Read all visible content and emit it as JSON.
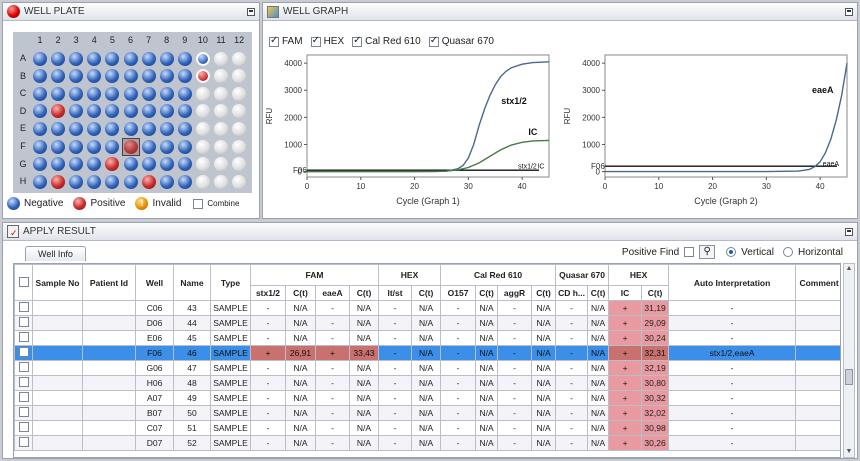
{
  "well_plate": {
    "title": "WELL PLATE",
    "columns": [
      "1",
      "2",
      "3",
      "4",
      "5",
      "6",
      "7",
      "8",
      "9",
      "10",
      "11",
      "12"
    ],
    "rows": [
      "A",
      "B",
      "C",
      "D",
      "E",
      "F",
      "G",
      "H"
    ],
    "wells": [
      [
        "N",
        "N",
        "N",
        "N",
        "N",
        "N",
        "N",
        "N",
        "N",
        "N-ring",
        "E",
        "E"
      ],
      [
        "N",
        "N",
        "N",
        "N",
        "N",
        "N",
        "N",
        "N",
        "N",
        "P-ring",
        "E",
        "E"
      ],
      [
        "N",
        "N",
        "N",
        "N",
        "N",
        "N",
        "N",
        "N",
        "N",
        "E",
        "E",
        "E"
      ],
      [
        "N",
        "P",
        "N",
        "N",
        "N",
        "N",
        "N",
        "N",
        "N",
        "E",
        "E",
        "E"
      ],
      [
        "N",
        "N",
        "N",
        "N",
        "N",
        "N",
        "N",
        "N",
        "N",
        "E",
        "E",
        "E"
      ],
      [
        "N",
        "N",
        "N",
        "N",
        "N",
        "P",
        "N",
        "N",
        "N",
        "E",
        "E",
        "E"
      ],
      [
        "N",
        "N",
        "N",
        "N",
        "P",
        "N",
        "N",
        "N",
        "N",
        "E",
        "E",
        "E"
      ],
      [
        "N",
        "P",
        "N",
        "N",
        "N",
        "N",
        "P",
        "N",
        "N",
        "E",
        "E",
        "E"
      ]
    ],
    "legend": {
      "negative": "Negative",
      "positive": "Positive",
      "invalid": "Invalid",
      "combine": "Combine"
    },
    "colors": {
      "negative": "#2f62b8",
      "positive": "#c52b2b",
      "invalid": "#e88a00",
      "empty": "#dcdcdc"
    }
  },
  "well_graph": {
    "title": "WELL GRAPH",
    "dyes": [
      {
        "label": "FAM",
        "checked": true
      },
      {
        "label": "HEX",
        "checked": true
      },
      {
        "label": "Cal Red 610",
        "checked": true
      },
      {
        "label": "Quasar 670",
        "checked": true
      }
    ]
  },
  "chart_data": [
    {
      "type": "line",
      "xlabel": "Cycle (Graph 1)",
      "ylabel": "RFU",
      "xlim": [
        0,
        45
      ],
      "ylim": [
        -200,
        4300
      ],
      "xticks": [
        0,
        10,
        20,
        30,
        40
      ],
      "yticks": [
        0,
        1000,
        2000,
        3000,
        4000
      ],
      "yticklabels": [
        "0",
        "1000",
        "2000",
        "3000",
        "4000"
      ],
      "threshold": 50,
      "well_label": "F06",
      "series": [
        {
          "name": "stx1/2",
          "color": "#4a6890",
          "x": [
            0,
            10,
            20,
            24,
            26,
            28,
            29,
            30,
            31,
            32,
            33,
            34,
            35,
            36,
            37,
            38,
            40,
            42,
            45
          ],
          "y": [
            0,
            0,
            0,
            5,
            20,
            100,
            220,
            500,
            1000,
            1700,
            2300,
            2800,
            3200,
            3500,
            3700,
            3830,
            3960,
            4020,
            4050
          ]
        },
        {
          "name": "IC",
          "color": "#4a7a44",
          "x": [
            0,
            10,
            20,
            24,
            26,
            28,
            30,
            32,
            34,
            36,
            38,
            40,
            42,
            45
          ],
          "y": [
            0,
            0,
            0,
            5,
            20,
            60,
            150,
            320,
            560,
            800,
            980,
            1080,
            1130,
            1150
          ]
        }
      ],
      "annotations": [
        {
          "text": "stx1/2",
          "x": 38.5,
          "y": 2500
        },
        {
          "text": "IC",
          "x": 42,
          "y": 1350
        },
        {
          "text": "stx1/2",
          "x": 41,
          "y": 120
        },
        {
          "text": "IC",
          "x": 43.5,
          "y": 120
        }
      ]
    },
    {
      "type": "line",
      "xlabel": "Cycle (Graph 2)",
      "ylabel": "RFU",
      "xlim": [
        0,
        45
      ],
      "ylim": [
        -200,
        4300
      ],
      "xticks": [
        0,
        10,
        20,
        30,
        40
      ],
      "yticks": [
        0,
        1000,
        2000,
        3000,
        4000
      ],
      "yticklabels": [
        "0",
        "1000",
        "2000",
        "3000",
        "4000"
      ],
      "threshold": 200,
      "well_label": "F06",
      "series": [
        {
          "name": "eaeA",
          "color": "#4a6890",
          "x": [
            0,
            10,
            20,
            30,
            36,
            38,
            39,
            40,
            41,
            42,
            43,
            44,
            45
          ],
          "y": [
            0,
            0,
            0,
            0,
            20,
            80,
            180,
            360,
            700,
            1200,
            1900,
            2800,
            4000
          ]
        }
      ],
      "annotations": [
        {
          "text": "eaeA",
          "x": 40.5,
          "y": 2900
        },
        {
          "text": "eaeA",
          "x": 42,
          "y": 200
        }
      ]
    }
  ],
  "apply_result": {
    "title": "APPLY RESULT",
    "tab": "Well Info",
    "positive_find": "Positive Find",
    "vertical": "Vertical",
    "horizontal": "Horizontal",
    "headers_top": [
      "Sample No",
      "Patient Id",
      "Well",
      "Name",
      "Type",
      "FAM",
      "HEX",
      "Cal Red 610",
      "Quasar 670",
      "HEX",
      "Auto  Interpretation",
      "Comment"
    ],
    "headers_sub": [
      "stx1/2",
      "C(t)",
      "eaeA",
      "C(t)",
      "lt/st",
      "C(t)",
      "O157",
      "C(t)",
      "aggR",
      "C(t)",
      "CD h...",
      "C(t)",
      "IC",
      "C(t)"
    ],
    "rows": [
      {
        "well": "C06",
        "name": "43",
        "type": "SAMPLE",
        "cells": [
          "-",
          "N/A",
          "-",
          "N/A",
          "-",
          "N/A",
          "-",
          "N/A",
          "-",
          "N/A",
          "-",
          "N/A",
          "+",
          "31,19"
        ],
        "interp": "-",
        "selected": false
      },
      {
        "well": "D06",
        "name": "44",
        "type": "SAMPLE",
        "cells": [
          "-",
          "N/A",
          "-",
          "N/A",
          "-",
          "N/A",
          "-",
          "N/A",
          "-",
          "N/A",
          "-",
          "N/A",
          "+",
          "29,09"
        ],
        "interp": "-",
        "selected": false
      },
      {
        "well": "E06",
        "name": "45",
        "type": "SAMPLE",
        "cells": [
          "-",
          "N/A",
          "-",
          "N/A",
          "-",
          "N/A",
          "-",
          "N/A",
          "-",
          "N/A",
          "-",
          "N/A",
          "+",
          "30,24"
        ],
        "interp": "-",
        "selected": false
      },
      {
        "well": "F06",
        "name": "46",
        "type": "SAMPLE",
        "cells": [
          "+",
          "26,91",
          "+",
          "33,43",
          "-",
          "N/A",
          "-",
          "N/A",
          "-",
          "N/A",
          "-",
          "N/A",
          "+",
          "32,31"
        ],
        "interp": "stx1/2,eaeA",
        "selected": true
      },
      {
        "well": "G06",
        "name": "47",
        "type": "SAMPLE",
        "cells": [
          "-",
          "N/A",
          "-",
          "N/A",
          "-",
          "N/A",
          "-",
          "N/A",
          "-",
          "N/A",
          "-",
          "N/A",
          "+",
          "32,19"
        ],
        "interp": "-",
        "selected": false
      },
      {
        "well": "H06",
        "name": "48",
        "type": "SAMPLE",
        "cells": [
          "-",
          "N/A",
          "-",
          "N/A",
          "-",
          "N/A",
          "-",
          "N/A",
          "-",
          "N/A",
          "-",
          "N/A",
          "+",
          "30,80"
        ],
        "interp": "-",
        "selected": false
      },
      {
        "well": "A07",
        "name": "49",
        "type": "SAMPLE",
        "cells": [
          "-",
          "N/A",
          "-",
          "N/A",
          "-",
          "N/A",
          "-",
          "N/A",
          "-",
          "N/A",
          "-",
          "N/A",
          "+",
          "30,32"
        ],
        "interp": "-",
        "selected": false
      },
      {
        "well": "B07",
        "name": "50",
        "type": "SAMPLE",
        "cells": [
          "-",
          "N/A",
          "-",
          "N/A",
          "-",
          "N/A",
          "-",
          "N/A",
          "-",
          "N/A",
          "-",
          "N/A",
          "+",
          "32,02"
        ],
        "interp": "-",
        "selected": false
      },
      {
        "well": "C07",
        "name": "51",
        "type": "SAMPLE",
        "cells": [
          "-",
          "N/A",
          "-",
          "N/A",
          "-",
          "N/A",
          "-",
          "N/A",
          "-",
          "N/A",
          "-",
          "N/A",
          "+",
          "30,98"
        ],
        "interp": "-",
        "selected": false
      },
      {
        "well": "D07",
        "name": "52",
        "type": "SAMPLE",
        "cells": [
          "-",
          "N/A",
          "-",
          "N/A",
          "-",
          "N/A",
          "-",
          "N/A",
          "-",
          "N/A",
          "-",
          "N/A",
          "+",
          "30,26"
        ],
        "interp": "-",
        "selected": false
      }
    ]
  }
}
